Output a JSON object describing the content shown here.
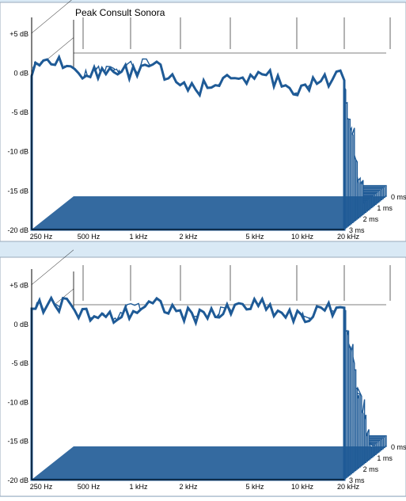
{
  "title": "Peak Consult Sonora",
  "colors": {
    "background": "#d9e9f5",
    "panel": "#ffffff",
    "plot": "#1e5a96",
    "axis": "#000000"
  },
  "chart_data": [
    {
      "type": "area",
      "title": "Peak Consult Sonora",
      "xlabel": "",
      "ylabel": "",
      "x_scale": "log",
      "x_ticks": [
        "250 Hz",
        "500 Hz",
        "1 kHz",
        "2 kHz",
        "5 kHz",
        "10 kHz",
        "20 kHz"
      ],
      "y_ticks": [
        "+5 dB",
        "0 dB",
        "-5 dB",
        "-10 dB",
        "-15 dB",
        "-20 dB"
      ],
      "ylim": [
        -20,
        5
      ],
      "z_ticks": [
        "0 ms",
        "1 ms",
        "2 ms",
        "3 ms"
      ],
      "zlim": [
        0,
        3
      ]
    },
    {
      "type": "area",
      "title": "",
      "xlabel": "",
      "ylabel": "",
      "x_scale": "log",
      "x_ticks": [
        "250 Hz",
        "500 Hz",
        "1 kHz",
        "2 kHz",
        "5 kHz",
        "10 kHz",
        "20 kHz"
      ],
      "y_ticks": [
        "+5 dB",
        "0 dB",
        "-5 dB",
        "-10 dB",
        "-15 dB",
        "-20 dB"
      ],
      "ylim": [
        -20,
        5
      ],
      "z_ticks": [
        "0 ms",
        "1 ms",
        "2 ms",
        "3 ms"
      ],
      "zlim": [
        0,
        3
      ]
    }
  ]
}
